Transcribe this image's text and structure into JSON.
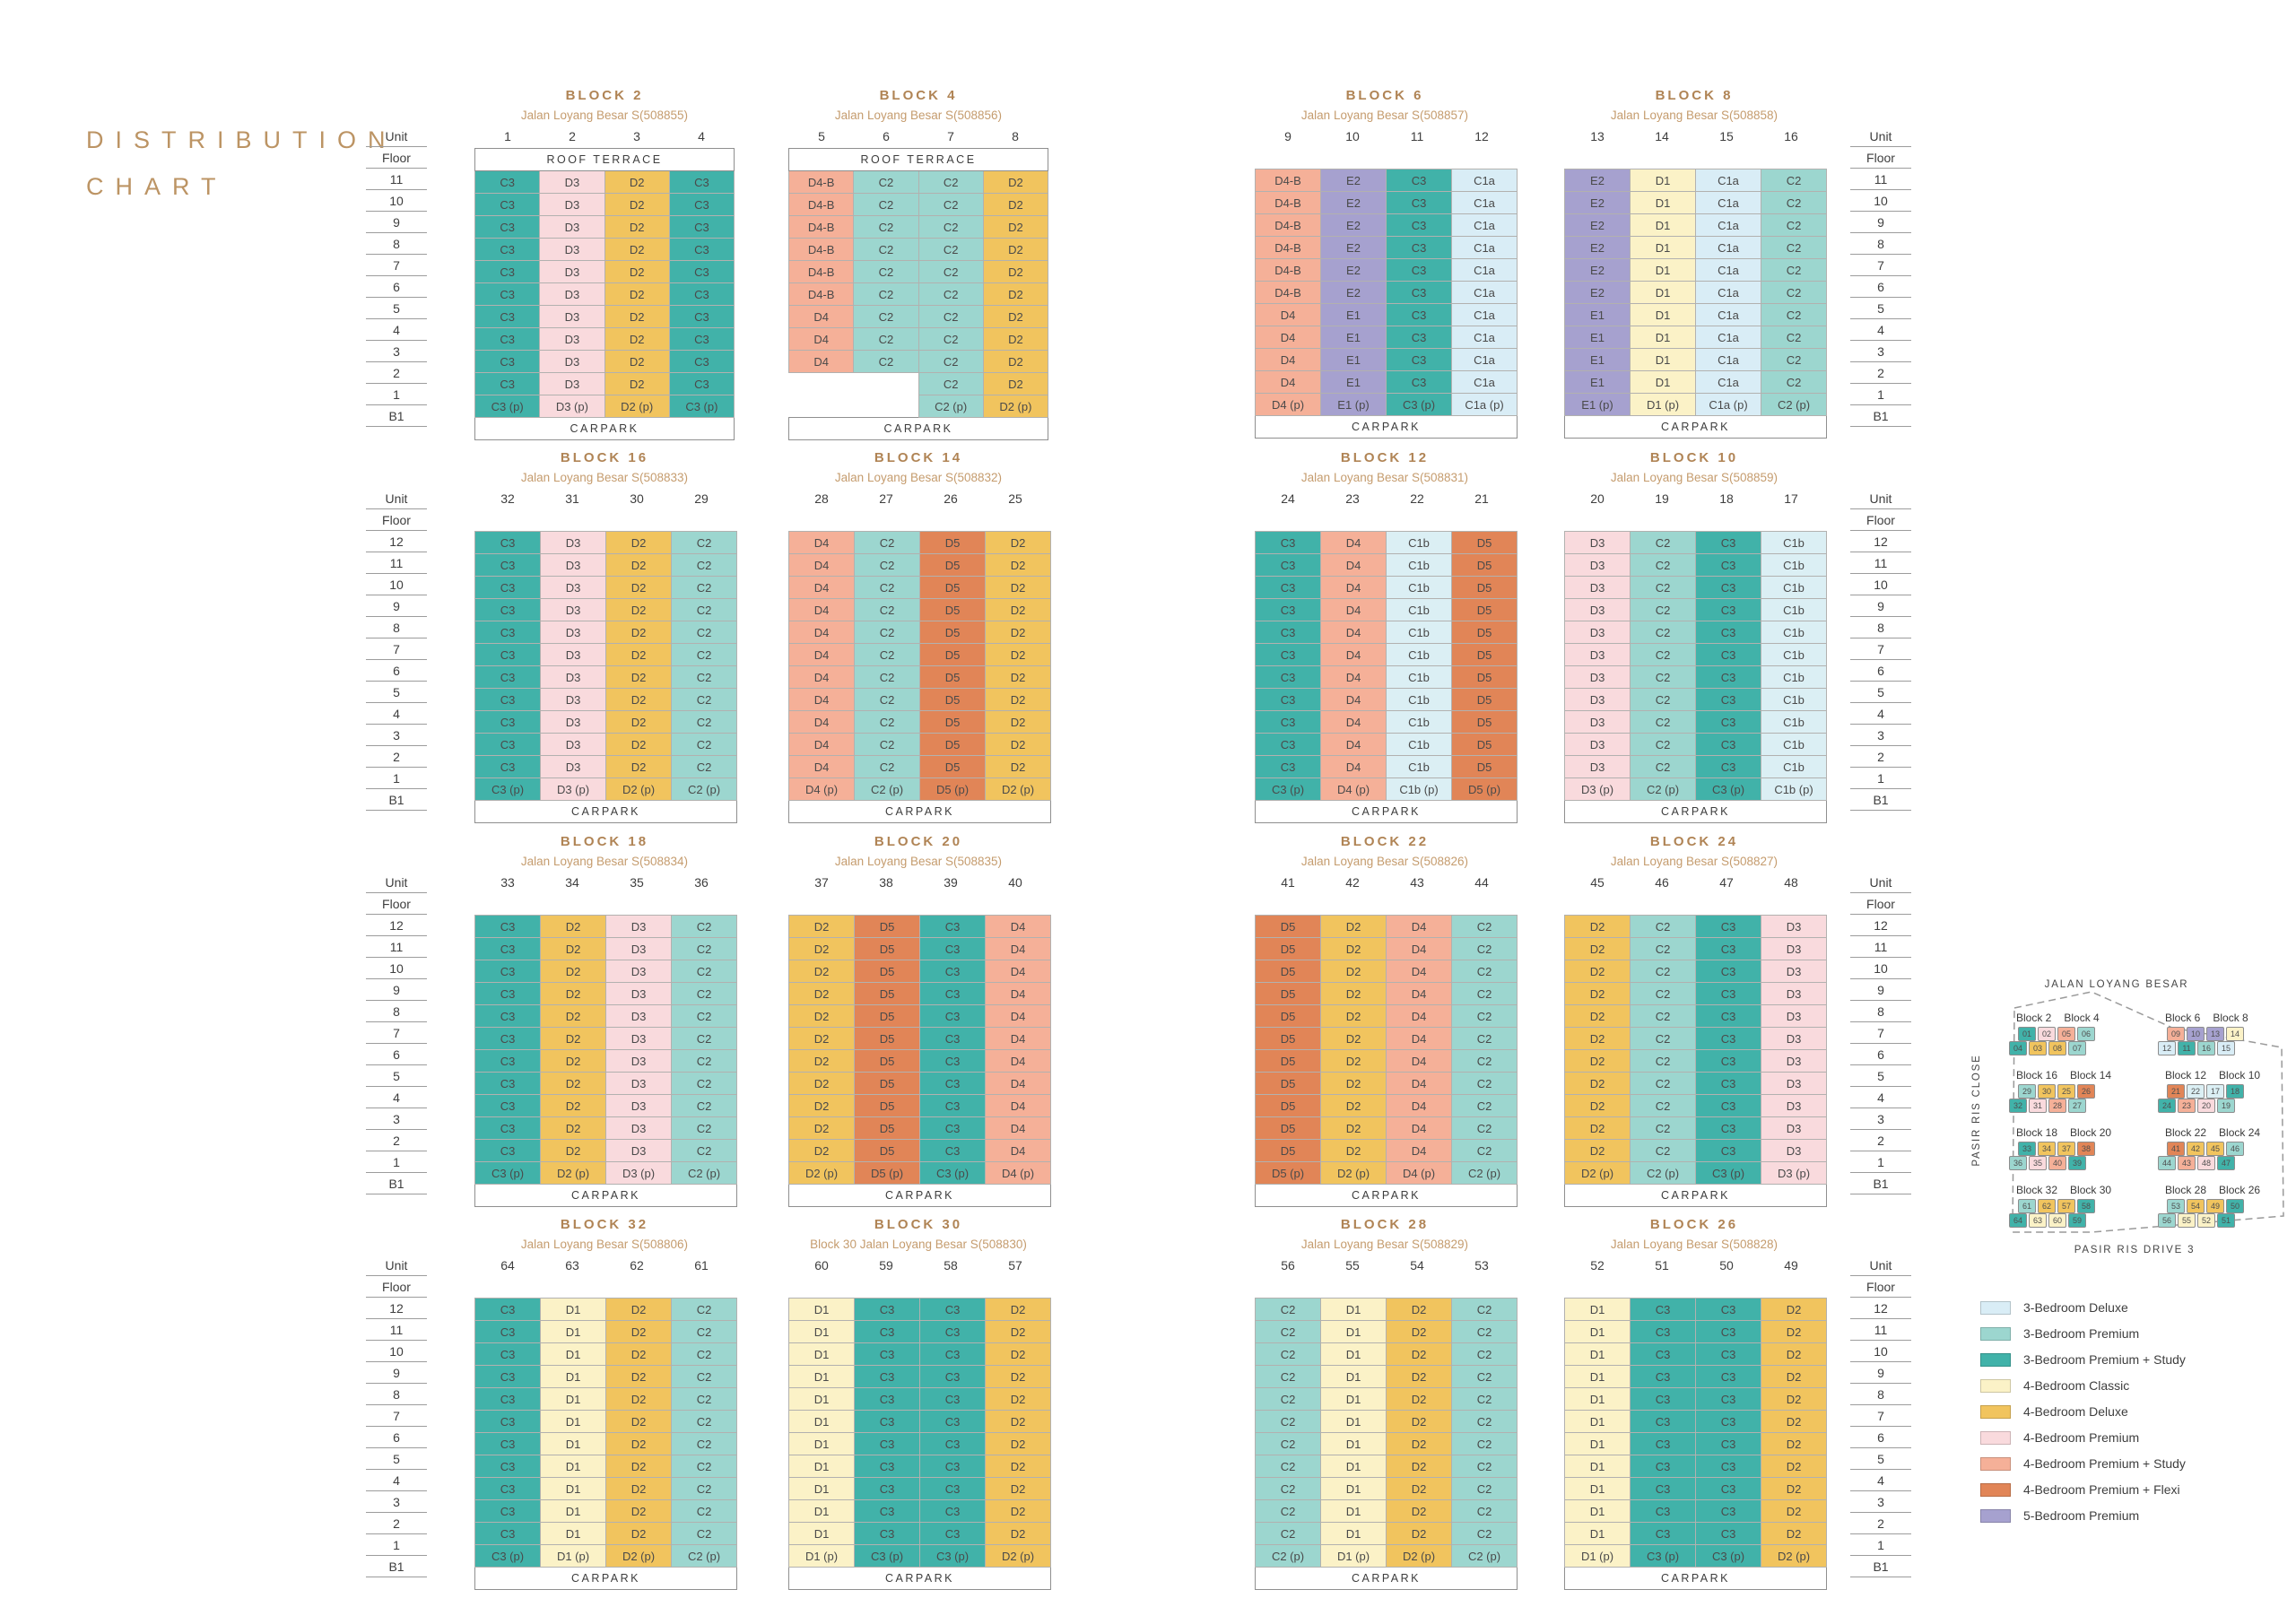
{
  "title": {
    "line1": "DISTRIBUTION",
    "line2": "CHART"
  },
  "labels": {
    "unit": "Unit",
    "floor": "Floor",
    "roof_terrace": "ROOF TERRACE",
    "carpark": "CARPARK",
    "b1": "B1"
  },
  "colors": {
    "C1a": "#D9EDF6",
    "C1b": "#DBEFF4",
    "C2": "#9CD6CF",
    "C3": "#41B2A9",
    "D1": "#FBF2C7",
    "D2": "#F1C45E",
    "D3": "#F9DADD",
    "D4": "#F5B098",
    "D5": "#E18557",
    "E1": "#A6A1CF",
    "E2": "#A6A1CF",
    "title_gold": "#B08455",
    "address_gold": "#C59C6E",
    "text_dark": "#3E3E3E",
    "line_gray": "#9C9C9C"
  },
  "groups": [
    {
      "floors": [
        "11",
        "10",
        "9",
        "8",
        "7",
        "6",
        "5",
        "4",
        "3",
        "2",
        "1"
      ],
      "blocks": [
        {
          "name": "BLOCK 2",
          "address": "Jalan Loyang Besar S(508855)",
          "units": [
            "1",
            "2",
            "3",
            "4"
          ],
          "roof_terrace": true,
          "rows": [
            {
              "n": 10,
              "c": [
                "C3",
                "D3",
                "D2",
                "C3"
              ]
            },
            {
              "n": 1,
              "c": [
                "C3 (p)",
                "D3 (p)",
                "D2 (p)",
                "C3 (p)"
              ]
            }
          ]
        },
        {
          "name": "BLOCK 4",
          "address": "Jalan Loyang Besar S(508856)",
          "units": [
            "5",
            "6",
            "7",
            "8"
          ],
          "roof_terrace": true,
          "rows": [
            {
              "n": 6,
              "c": [
                "D4-B",
                "C2",
                "C2",
                "D2"
              ]
            },
            {
              "n": 3,
              "c": [
                "D4",
                "C2",
                "C2",
                "D2"
              ]
            },
            {
              "n": 1,
              "c": [
                "",
                "",
                "C2",
                "D2"
              ]
            },
            {
              "n": 1,
              "c": [
                "",
                "",
                "C2 (p)",
                "D2 (p)"
              ]
            }
          ]
        },
        {
          "name": "BLOCK 6",
          "address": "Jalan Loyang Besar S(508857)",
          "units": [
            "9",
            "10",
            "11",
            "12"
          ],
          "roof_terrace": false,
          "rows": [
            {
              "n": 6,
              "c": [
                "D4-B",
                "E2",
                "C3",
                "C1a"
              ]
            },
            {
              "n": 4,
              "c": [
                "D4",
                "E1",
                "C3",
                "C1a"
              ]
            },
            {
              "n": 1,
              "c": [
                "D4 (p)",
                "E1 (p)",
                "C3 (p)",
                "C1a (p)"
              ]
            }
          ]
        },
        {
          "name": "BLOCK 8",
          "address": "Jalan Loyang Besar S(508858)",
          "units": [
            "13",
            "14",
            "15",
            "16"
          ],
          "roof_terrace": false,
          "rows": [
            {
              "n": 6,
              "c": [
                "E2",
                "D1",
                "C1a",
                "C2"
              ]
            },
            {
              "n": 4,
              "c": [
                "E1",
                "D1",
                "C1a",
                "C2"
              ]
            },
            {
              "n": 1,
              "c": [
                "E1 (p)",
                "D1 (p)",
                "C1a (p)",
                "C2 (p)"
              ]
            }
          ]
        }
      ]
    },
    {
      "floors": [
        "12",
        "11",
        "10",
        "9",
        "8",
        "7",
        "6",
        "5",
        "4",
        "3",
        "2",
        "1"
      ],
      "blocks": [
        {
          "name": "BLOCK 16",
          "address": "Jalan Loyang Besar S(508833)",
          "units": [
            "32",
            "31",
            "30",
            "29"
          ],
          "roof_terrace": false,
          "rows": [
            {
              "n": 11,
              "c": [
                "C3",
                "D3",
                "D2",
                "C2"
              ]
            },
            {
              "n": 1,
              "c": [
                "C3 (p)",
                "D3 (p)",
                "D2 (p)",
                "C2 (p)"
              ]
            }
          ]
        },
        {
          "name": "BLOCK 14",
          "address": "Jalan Loyang Besar S(508832)",
          "units": [
            "28",
            "27",
            "26",
            "25"
          ],
          "roof_terrace": false,
          "rows": [
            {
              "n": 11,
              "c": [
                "D4",
                "C2",
                "D5",
                "D2"
              ]
            },
            {
              "n": 1,
              "c": [
                "D4 (p)",
                "C2 (p)",
                "D5 (p)",
                "D2 (p)"
              ]
            }
          ]
        },
        {
          "name": "BLOCK 12",
          "address": "Jalan Loyang Besar S(508831)",
          "units": [
            "24",
            "23",
            "22",
            "21"
          ],
          "roof_terrace": false,
          "rows": [
            {
              "n": 11,
              "c": [
                "C3",
                "D4",
                "C1b",
                "D5"
              ]
            },
            {
              "n": 1,
              "c": [
                "C3 (p)",
                "D4 (p)",
                "C1b (p)",
                "D5 (p)"
              ]
            }
          ]
        },
        {
          "name": "BLOCK 10",
          "address": "Jalan Loyang Besar S(508859)",
          "units": [
            "20",
            "19",
            "18",
            "17"
          ],
          "roof_terrace": false,
          "rows": [
            {
              "n": 11,
              "c": [
                "D3",
                "C2",
                "C3",
                "C1b"
              ]
            },
            {
              "n": 1,
              "c": [
                "D3 (p)",
                "C2 (p)",
                "C3 (p)",
                "C1b (p)"
              ]
            }
          ]
        }
      ]
    },
    {
      "floors": [
        "12",
        "11",
        "10",
        "9",
        "8",
        "7",
        "6",
        "5",
        "4",
        "3",
        "2",
        "1"
      ],
      "blocks": [
        {
          "name": "BLOCK 18",
          "address": "Jalan Loyang Besar S(508834)",
          "units": [
            "33",
            "34",
            "35",
            "36"
          ],
          "roof_terrace": false,
          "rows": [
            {
              "n": 11,
              "c": [
                "C3",
                "D2",
                "D3",
                "C2"
              ]
            },
            {
              "n": 1,
              "c": [
                "C3 (p)",
                "D2 (p)",
                "D3 (p)",
                "C2 (p)"
              ]
            }
          ]
        },
        {
          "name": "BLOCK 20",
          "address": "Jalan Loyang Besar S(508835)",
          "units": [
            "37",
            "38",
            "39",
            "40"
          ],
          "roof_terrace": false,
          "rows": [
            {
              "n": 11,
              "c": [
                "D2",
                "D5",
                "C3",
                "D4"
              ]
            },
            {
              "n": 1,
              "c": [
                "D2 (p)",
                "D5 (p)",
                "C3 (p)",
                "D4 (p)"
              ]
            }
          ]
        },
        {
          "name": "BLOCK 22",
          "address": "Jalan Loyang Besar S(508826)",
          "units": [
            "41",
            "42",
            "43",
            "44"
          ],
          "roof_terrace": false,
          "rows": [
            {
              "n": 11,
              "c": [
                "D5",
                "D2",
                "D4",
                "C2"
              ]
            },
            {
              "n": 1,
              "c": [
                "D5 (p)",
                "D2 (p)",
                "D4 (p)",
                "C2 (p)"
              ]
            }
          ]
        },
        {
          "name": "BLOCK 24",
          "address": "Jalan Loyang Besar S(508827)",
          "units": [
            "45",
            "46",
            "47",
            "48"
          ],
          "roof_terrace": false,
          "rows": [
            {
              "n": 11,
              "c": [
                "D2",
                "C2",
                "C3",
                "D3"
              ]
            },
            {
              "n": 1,
              "c": [
                "D2 (p)",
                "C2 (p)",
                "C3 (p)",
                "D3 (p)"
              ]
            }
          ]
        }
      ]
    },
    {
      "floors": [
        "12",
        "11",
        "10",
        "9",
        "8",
        "7",
        "6",
        "5",
        "4",
        "3",
        "2",
        "1"
      ],
      "blocks": [
        {
          "name": "BLOCK 32",
          "address": "Jalan Loyang Besar S(508806)",
          "units": [
            "64",
            "63",
            "62",
            "61"
          ],
          "roof_terrace": false,
          "rows": [
            {
              "n": 11,
              "c": [
                "C3",
                "D1",
                "D2",
                "C2"
              ]
            },
            {
              "n": 1,
              "c": [
                "C3 (p)",
                "D1 (p)",
                "D2 (p)",
                "C2 (p)"
              ]
            }
          ]
        },
        {
          "name": "BLOCK 30",
          "address": "Block 30 Jalan Loyang Besar S(508830)",
          "units": [
            "60",
            "59",
            "58",
            "57"
          ],
          "roof_terrace": false,
          "rows": [
            {
              "n": 11,
              "c": [
                "D1",
                "C3",
                "C3",
                "D2"
              ]
            },
            {
              "n": 1,
              "c": [
                "D1 (p)",
                "C3 (p)",
                "C3 (p)",
                "D2 (p)"
              ]
            }
          ]
        },
        {
          "name": "BLOCK 28",
          "address": "Jalan Loyang Besar S(508829)",
          "units": [
            "56",
            "55",
            "54",
            "53"
          ],
          "roof_terrace": false,
          "rows": [
            {
              "n": 11,
              "c": [
                "C2",
                "D1",
                "D2",
                "C2"
              ]
            },
            {
              "n": 1,
              "c": [
                "C2 (p)",
                "D1 (p)",
                "D2 (p)",
                "C2 (p)"
              ]
            }
          ]
        },
        {
          "name": "BLOCK 26",
          "address": "Jalan Loyang Besar S(508828)",
          "units": [
            "52",
            "51",
            "50",
            "49"
          ],
          "roof_terrace": false,
          "rows": [
            {
              "n": 11,
              "c": [
                "D1",
                "C3",
                "C3",
                "D2"
              ]
            },
            {
              "n": 1,
              "c": [
                "D1 (p)",
                "C3 (p)",
                "C3 (p)",
                "D2 (p)"
              ]
            }
          ]
        }
      ]
    }
  ],
  "map": {
    "street_top": "JALAN LOYANG BESAR",
    "street_left": "PASIR RIS CLOSE",
    "street_bottom": "PASIR RIS DRIVE 3",
    "clusters": [
      {
        "titles": [
          "Block 2",
          "Block 4"
        ],
        "rows": [
          [
            [
              "01",
              "C3"
            ],
            [
              "02",
              "D3"
            ],
            [
              "05",
              "D4"
            ],
            [
              "06",
              "C2"
            ]
          ],
          [
            [
              "04",
              "C3"
            ],
            [
              "03",
              "D2"
            ],
            [
              "08",
              "D2"
            ],
            [
              "07",
              "C2"
            ]
          ]
        ]
      },
      {
        "titles": [
          "Block 6",
          "Block 8"
        ],
        "rows": [
          [
            [
              "09",
              "D4"
            ],
            [
              "10",
              "E2"
            ],
            [
              "13",
              "E2"
            ],
            [
              "14",
              "D1"
            ]
          ],
          [
            [
              "12",
              "C1a"
            ],
            [
              "11",
              "C3"
            ],
            [
              "16",
              "C2"
            ],
            [
              "15",
              "C1a"
            ]
          ]
        ]
      },
      {
        "titles": [
          "Block 16",
          "Block 14"
        ],
        "rows": [
          [
            [
              "29",
              "C2"
            ],
            [
              "30",
              "D2"
            ],
            [
              "25",
              "D2"
            ],
            [
              "26",
              "D5"
            ]
          ],
          [
            [
              "32",
              "C3"
            ],
            [
              "31",
              "D3"
            ],
            [
              "28",
              "D4"
            ],
            [
              "27",
              "C2"
            ]
          ]
        ]
      },
      {
        "titles": [
          "Block 12",
          "Block 10"
        ],
        "rows": [
          [
            [
              "21",
              "D5"
            ],
            [
              "22",
              "C1b"
            ],
            [
              "17",
              "C1b"
            ],
            [
              "18",
              "C3"
            ]
          ],
          [
            [
              "24",
              "C3"
            ],
            [
              "23",
              "D4"
            ],
            [
              "20",
              "D3"
            ],
            [
              "19",
              "C2"
            ]
          ]
        ]
      },
      {
        "titles": [
          "Block 18",
          "Block 20"
        ],
        "rows": [
          [
            [
              "33",
              "C3"
            ],
            [
              "34",
              "D2"
            ],
            [
              "37",
              "D2"
            ],
            [
              "38",
              "D5"
            ]
          ],
          [
            [
              "36",
              "C2"
            ],
            [
              "35",
              "D3"
            ],
            [
              "40",
              "D4"
            ],
            [
              "39",
              "C3"
            ]
          ]
        ]
      },
      {
        "titles": [
          "Block 22",
          "Block 24"
        ],
        "rows": [
          [
            [
              "41",
              "D5"
            ],
            [
              "42",
              "D2"
            ],
            [
              "45",
              "D2"
            ],
            [
              "46",
              "C2"
            ]
          ],
          [
            [
              "44",
              "C2"
            ],
            [
              "43",
              "D4"
            ],
            [
              "48",
              "D3"
            ],
            [
              "47",
              "C3"
            ]
          ]
        ]
      },
      {
        "titles": [
          "Block 32",
          "Block 30"
        ],
        "rows": [
          [
            [
              "61",
              "C2"
            ],
            [
              "62",
              "D2"
            ],
            [
              "57",
              "D2"
            ],
            [
              "58",
              "C3"
            ]
          ],
          [
            [
              "64",
              "C3"
            ],
            [
              "63",
              "D1"
            ],
            [
              "60",
              "D1"
            ],
            [
              "59",
              "C3"
            ]
          ]
        ]
      },
      {
        "titles": [
          "Block 28",
          "Block 26"
        ],
        "rows": [
          [
            [
              "53",
              "C2"
            ],
            [
              "54",
              "D2"
            ],
            [
              "49",
              "D2"
            ],
            [
              "50",
              "C3"
            ]
          ],
          [
            [
              "56",
              "C2"
            ],
            [
              "55",
              "D1"
            ],
            [
              "52",
              "D1"
            ],
            [
              "51",
              "C3"
            ]
          ]
        ]
      }
    ]
  },
  "legend": [
    {
      "label": "3-Bedroom Deluxe",
      "color": "#D9EDF6"
    },
    {
      "label": "3-Bedroom Premium",
      "color": "#9CD6CF"
    },
    {
      "label": "3-Bedroom Premium + Study",
      "color": "#41B2A9"
    },
    {
      "label": "4-Bedroom Classic",
      "color": "#FBF2C7"
    },
    {
      "label": "4-Bedroom Deluxe",
      "color": "#F1C45E"
    },
    {
      "label": "4-Bedroom Premium",
      "color": "#F9DADD"
    },
    {
      "label": "4-Bedroom Premium + Study",
      "color": "#F5B098"
    },
    {
      "label": "4-Bedroom Premium + Flexi",
      "color": "#E18557"
    },
    {
      "label": "5-Bedroom Premium",
      "color": "#A6A1CF"
    }
  ]
}
